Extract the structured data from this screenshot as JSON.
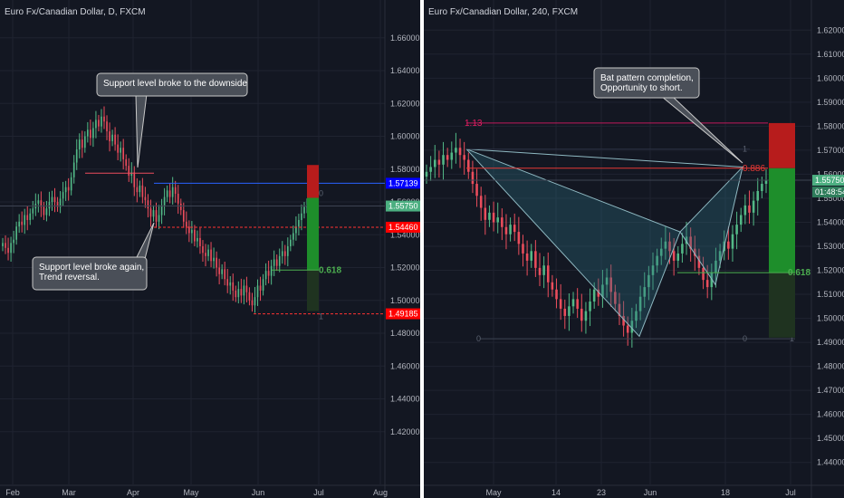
{
  "colors": {
    "background": "#131722",
    "grid": "#1f2330",
    "axis_text": "#b2b5be",
    "up": "#53b987",
    "down": "#eb4d5c",
    "callout_bg": "#4a4f58",
    "callout_border": "#c8c8c8",
    "callout_text": "#ffffff",
    "price_badge": "#4caf81",
    "red_badge": "#ff0000",
    "blue_badge": "#0000ff",
    "pattern_fill": "#2b6b7a",
    "pattern_line": "#8fb9c2",
    "fib_line": "#c2185b"
  },
  "left_chart": {
    "title": "Euro Fx/Canadian Dollar, D, FXCM",
    "symbol_label": "Euro Fx/Canadian Dollar, D, FXCM",
    "callouts": {
      "top": "Support level broke to the downside",
      "bottom_line1": "Support level broke again,",
      "bottom_line2": "Trend reversal."
    },
    "badges": {
      "blue": "1.57139",
      "current": "1.55750",
      "red_top": "1.54460",
      "red_bottom": "1.49185"
    },
    "fib_labels": {
      "ratio": "0.618",
      "zero": "0",
      "one": "1"
    }
  },
  "right_chart": {
    "title": "Euro Fx/Canadian Dollar, 240, FXCM",
    "symbol_label": "Euro Fx/Canadian Dollar, 240, FXCM",
    "callout_line1": "Bat pattern completion,",
    "callout_line2": "Opportunity to short.",
    "badges": {
      "current": "1.55750",
      "timer": "01:48:54"
    },
    "fib_labels": {
      "ext": "1.13",
      "ratio_886": "0.886",
      "ratio_618": "0.618",
      "zero_a": "0",
      "zero_b": "0",
      "one_a": "1",
      "one_b": "1"
    }
  },
  "chart_data": [
    {
      "type": "candlestick",
      "title": "Euro Fx/Canadian Dollar, D, FXCM",
      "x_ticks": [
        "Feb",
        "Mar",
        "Apr",
        "May",
        "Jun",
        "Jul",
        "Aug"
      ],
      "y_ticks": [
        "1.66000",
        "1.64000",
        "1.62000",
        "1.60000",
        "1.58000",
        "1.56000",
        "1.54000",
        "1.52000",
        "1.50000",
        "1.48000",
        "1.46000",
        "1.44000",
        "1.42000"
      ],
      "ylim": [
        1.405,
        1.672
      ],
      "close_path": [
        1.535,
        1.532,
        1.529,
        1.535,
        1.537,
        1.545,
        1.548,
        1.546,
        1.552,
        1.549,
        1.553,
        1.556,
        1.559,
        1.561,
        1.557,
        1.552,
        1.556,
        1.56,
        1.563,
        1.56,
        1.557,
        1.562,
        1.566,
        1.569,
        1.567,
        1.575,
        1.584,
        1.592,
        1.598,
        1.593,
        1.6,
        1.604,
        1.599,
        1.605,
        1.61,
        1.606,
        1.612,
        1.609,
        1.603,
        1.597,
        1.601,
        1.595,
        1.59,
        1.593,
        1.586,
        1.582,
        1.576,
        1.578,
        1.569,
        1.566,
        1.57,
        1.563,
        1.561,
        1.556,
        1.551,
        1.555,
        1.548,
        1.552,
        1.558,
        1.563,
        1.567,
        1.563,
        1.569,
        1.565,
        1.559,
        1.555,
        1.548,
        1.545,
        1.541,
        1.543,
        1.536,
        1.538,
        1.533,
        1.529,
        1.527,
        1.531,
        1.524,
        1.526,
        1.52,
        1.516,
        1.519,
        1.513,
        1.509,
        1.511,
        1.506,
        1.502,
        1.507,
        1.503,
        1.509,
        1.505,
        1.5,
        1.497,
        1.502,
        1.509,
        1.506,
        1.513,
        1.518,
        1.515,
        1.521,
        1.525,
        1.521,
        1.527,
        1.53,
        1.527,
        1.533,
        1.537,
        1.541,
        1.545,
        1.549,
        1.553,
        1.557,
        1.5575
      ],
      "annotations": [
        "Support level broke to the downside",
        "Support level broke again,",
        "Trend reversal."
      ],
      "price_labels": [
        "1.57139",
        "1.55750",
        "1.54460",
        "1.49185"
      ],
      "fib_levels": [
        "0.618",
        "0",
        "1"
      ],
      "grid": true
    },
    {
      "type": "candlestick",
      "title": "Euro Fx/Canadian Dollar, 240, FXCM",
      "x_ticks": [
        "May",
        "14",
        "23",
        "Jun",
        "18",
        "Jul"
      ],
      "y_ticks": [
        "1.62000",
        "1.61000",
        "1.60000",
        "1.59000",
        "1.58000",
        "1.57000",
        "1.56000",
        "1.55000",
        "1.54000",
        "1.53000",
        "1.52000",
        "1.51000",
        "1.50000",
        "1.49000",
        "1.48000",
        "1.47000",
        "1.46000",
        "1.45000",
        "1.44000"
      ],
      "ylim": [
        1.435,
        1.625
      ],
      "close_path": [
        1.561,
        1.563,
        1.566,
        1.564,
        1.568,
        1.566,
        1.569,
        1.571,
        1.568,
        1.566,
        1.561,
        1.556,
        1.551,
        1.546,
        1.541,
        1.544,
        1.54,
        1.542,
        1.538,
        1.535,
        1.539,
        1.536,
        1.531,
        1.527,
        1.524,
        1.528,
        1.521,
        1.518,
        1.522,
        1.515,
        1.512,
        1.508,
        1.504,
        1.501,
        1.505,
        1.508,
        1.504,
        1.499,
        1.503,
        1.507,
        1.512,
        1.509,
        1.514,
        1.517,
        1.511,
        1.506,
        1.501,
        1.497,
        1.494,
        1.499,
        1.503,
        1.509,
        1.513,
        1.518,
        1.522,
        1.526,
        1.529,
        1.532,
        1.528,
        1.524,
        1.527,
        1.531,
        1.534,
        1.529,
        1.526,
        1.521,
        1.516,
        1.513,
        1.519,
        1.524,
        1.528,
        1.532,
        1.529,
        1.535,
        1.539,
        1.543,
        1.547,
        1.544,
        1.549,
        1.553,
        1.556,
        1.5575
      ],
      "annotations": [
        "Bat pattern completion,",
        "Opportunity to short."
      ],
      "price_labels": [
        "1.55750",
        "01:48:54"
      ],
      "fib_levels": [
        "1.13",
        "0.886",
        "0.618",
        "0",
        "1"
      ],
      "grid": true
    }
  ]
}
